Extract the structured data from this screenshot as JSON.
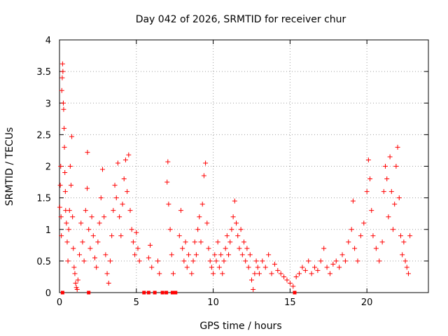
{
  "chart_data": {
    "type": "scatter",
    "title": "Day 042 of 2026, SRMTID for receiver chur",
    "xlabel": "GPS time / hours",
    "ylabel": "SRMTID / TECUs",
    "xlim": [
      0,
      24
    ],
    "ylim": [
      0,
      4
    ],
    "xticks": [
      0,
      5,
      10,
      15,
      20
    ],
    "xtick_labels": [
      "0",
      "5",
      "10",
      "15",
      "20"
    ],
    "yticks": [
      0,
      0.5,
      1,
      1.5,
      2,
      2.5,
      3,
      3.5,
      4
    ],
    "ytick_labels": [
      "0",
      "0.5",
      "1",
      "1.5",
      "2",
      "2.5",
      "3",
      "3.5",
      "4"
    ],
    "grid": true,
    "marker": "+",
    "color": "#ff0000",
    "series": [
      {
        "name": "SRMTID",
        "points": [
          [
            0.02,
            1.35
          ],
          [
            0.05,
            1.7
          ],
          [
            0.08,
            2.0
          ],
          [
            0.1,
            1.2
          ],
          [
            0.12,
            0.9
          ],
          [
            0.15,
            3.2
          ],
          [
            0.18,
            3.4
          ],
          [
            0.2,
            3.62
          ],
          [
            0.22,
            3.5
          ],
          [
            0.25,
            3.0
          ],
          [
            0.27,
            2.9
          ],
          [
            0.3,
            2.6
          ],
          [
            0.32,
            2.3
          ],
          [
            0.35,
            1.9
          ],
          [
            0.38,
            1.6
          ],
          [
            0.4,
            1.3
          ],
          [
            0.45,
            1.1
          ],
          [
            0.5,
            0.8
          ],
          [
            0.55,
            0.5
          ],
          [
            0.6,
            1.0
          ],
          [
            0.65,
            1.3
          ],
          [
            0.7,
            2.0
          ],
          [
            0.75,
            1.7
          ],
          [
            0.8,
            2.47
          ],
          [
            0.85,
            1.2
          ],
          [
            0.9,
            0.7
          ],
          [
            0.95,
            0.4
          ],
          [
            1.0,
            0.3
          ],
          [
            1.05,
            0.15
          ],
          [
            1.1,
            0.08
          ],
          [
            1.15,
            0.05
          ],
          [
            1.2,
            0.2
          ],
          [
            1.3,
            0.6
          ],
          [
            1.4,
            1.1
          ],
          [
            1.5,
            0.8
          ],
          [
            1.6,
            0.5
          ],
          [
            1.7,
            1.3
          ],
          [
            1.8,
            1.65
          ],
          [
            1.82,
            2.22
          ],
          [
            1.9,
            1.0
          ],
          [
            2.0,
            0.7
          ],
          [
            2.1,
            1.2
          ],
          [
            2.2,
            0.9
          ],
          [
            2.3,
            0.55
          ],
          [
            2.4,
            0.4
          ],
          [
            2.5,
            0.8
          ],
          [
            2.6,
            1.1
          ],
          [
            2.7,
            1.5
          ],
          [
            2.8,
            1.95
          ],
          [
            2.9,
            1.2
          ],
          [
            3.0,
            0.6
          ],
          [
            3.1,
            0.3
          ],
          [
            3.2,
            0.15
          ],
          [
            3.3,
            0.5
          ],
          [
            3.4,
            0.9
          ],
          [
            3.5,
            1.3
          ],
          [
            3.6,
            1.7
          ],
          [
            3.7,
            1.5
          ],
          [
            3.8,
            2.05
          ],
          [
            3.9,
            1.2
          ],
          [
            4.0,
            0.9
          ],
          [
            4.1,
            1.4
          ],
          [
            4.2,
            1.8
          ],
          [
            4.3,
            2.1
          ],
          [
            4.4,
            1.6
          ],
          [
            4.5,
            2.18
          ],
          [
            4.6,
            1.3
          ],
          [
            4.7,
            1.0
          ],
          [
            4.8,
            0.8
          ],
          [
            4.9,
            0.6
          ],
          [
            5.0,
            0.95
          ],
          [
            5.1,
            0.7
          ],
          [
            5.2,
            0.5
          ],
          [
            5.8,
            0.55
          ],
          [
            5.9,
            0.75
          ],
          [
            6.0,
            0.4
          ],
          [
            6.4,
            0.5
          ],
          [
            6.5,
            0.3
          ],
          [
            7.0,
            1.75
          ],
          [
            7.05,
            2.07
          ],
          [
            7.1,
            1.4
          ],
          [
            7.2,
            1.0
          ],
          [
            7.3,
            0.6
          ],
          [
            7.4,
            0.3
          ],
          [
            7.8,
            0.9
          ],
          [
            7.9,
            1.3
          ],
          [
            8.0,
            0.7
          ],
          [
            8.1,
            0.5
          ],
          [
            8.2,
            0.8
          ],
          [
            8.3,
            0.4
          ],
          [
            8.4,
            0.6
          ],
          [
            8.6,
            0.3
          ],
          [
            8.7,
            0.5
          ],
          [
            8.8,
            0.8
          ],
          [
            8.9,
            0.6
          ],
          [
            9.0,
            1.0
          ],
          [
            9.1,
            1.2
          ],
          [
            9.2,
            0.8
          ],
          [
            9.3,
            1.4
          ],
          [
            9.4,
            1.85
          ],
          [
            9.5,
            2.05
          ],
          [
            9.6,
            1.1
          ],
          [
            9.7,
            0.7
          ],
          [
            9.8,
            0.5
          ],
          [
            9.9,
            0.4
          ],
          [
            10.0,
            0.3
          ],
          [
            10.1,
            0.6
          ],
          [
            10.2,
            0.5
          ],
          [
            10.3,
            0.8
          ],
          [
            10.4,
            0.4
          ],
          [
            10.5,
            0.6
          ],
          [
            10.6,
            0.3
          ],
          [
            10.7,
            0.5
          ],
          [
            10.8,
            0.7
          ],
          [
            10.9,
            0.9
          ],
          [
            11.0,
            0.6
          ],
          [
            11.1,
            0.8
          ],
          [
            11.2,
            1.0
          ],
          [
            11.3,
            1.2
          ],
          [
            11.4,
            1.45
          ],
          [
            11.5,
            1.1
          ],
          [
            11.6,
            0.9
          ],
          [
            11.7,
            0.7
          ],
          [
            11.8,
            1.0
          ],
          [
            11.9,
            0.6
          ],
          [
            12.0,
            0.8
          ],
          [
            12.1,
            0.5
          ],
          [
            12.2,
            0.7
          ],
          [
            12.3,
            0.4
          ],
          [
            12.4,
            0.6
          ],
          [
            12.5,
            0.2
          ],
          [
            12.6,
            0.05
          ],
          [
            12.7,
            0.3
          ],
          [
            12.8,
            0.5
          ],
          [
            12.9,
            0.4
          ],
          [
            13.0,
            0.3
          ],
          [
            13.2,
            0.5
          ],
          [
            13.4,
            0.4
          ],
          [
            13.6,
            0.6
          ],
          [
            13.8,
            0.3
          ],
          [
            14.0,
            0.45
          ],
          [
            14.2,
            0.35
          ],
          [
            14.4,
            0.3
          ],
          [
            14.6,
            0.25
          ],
          [
            14.8,
            0.2
          ],
          [
            15.0,
            0.15
          ],
          [
            15.2,
            0.1
          ],
          [
            15.4,
            0.25
          ],
          [
            15.6,
            0.3
          ],
          [
            15.8,
            0.4
          ],
          [
            16.0,
            0.35
          ],
          [
            16.2,
            0.5
          ],
          [
            16.4,
            0.3
          ],
          [
            16.6,
            0.4
          ],
          [
            16.8,
            0.35
          ],
          [
            17.0,
            0.5
          ],
          [
            17.2,
            0.7
          ],
          [
            17.4,
            0.4
          ],
          [
            17.6,
            0.3
          ],
          [
            17.8,
            0.45
          ],
          [
            18.0,
            0.5
          ],
          [
            18.2,
            0.4
          ],
          [
            18.4,
            0.6
          ],
          [
            18.6,
            0.5
          ],
          [
            18.8,
            0.8
          ],
          [
            19.0,
            1.0
          ],
          [
            19.1,
            1.45
          ],
          [
            19.2,
            0.7
          ],
          [
            19.4,
            0.5
          ],
          [
            19.6,
            0.9
          ],
          [
            19.8,
            1.1
          ],
          [
            20.0,
            1.6
          ],
          [
            20.1,
            2.1
          ],
          [
            20.2,
            1.8
          ],
          [
            20.3,
            1.3
          ],
          [
            20.4,
            0.9
          ],
          [
            20.6,
            0.7
          ],
          [
            20.8,
            0.5
          ],
          [
            21.0,
            0.8
          ],
          [
            21.1,
            1.6
          ],
          [
            21.2,
            2.0
          ],
          [
            21.3,
            1.8
          ],
          [
            21.4,
            1.2
          ],
          [
            21.5,
            2.15
          ],
          [
            21.6,
            1.6
          ],
          [
            21.7,
            1.0
          ],
          [
            21.8,
            1.4
          ],
          [
            21.9,
            2.0
          ],
          [
            22.0,
            2.3
          ],
          [
            22.1,
            1.5
          ],
          [
            22.2,
            0.9
          ],
          [
            22.3,
            0.6
          ],
          [
            22.4,
            0.8
          ],
          [
            22.5,
            0.5
          ],
          [
            22.6,
            0.4
          ],
          [
            22.7,
            0.3
          ],
          [
            22.8,
            0.9
          ]
        ]
      }
    ],
    "zero_markers_x": [
      0.2,
      1.9,
      5.5,
      5.8,
      6.2,
      6.7,
      6.95,
      7.35,
      7.55,
      15.3
    ]
  }
}
